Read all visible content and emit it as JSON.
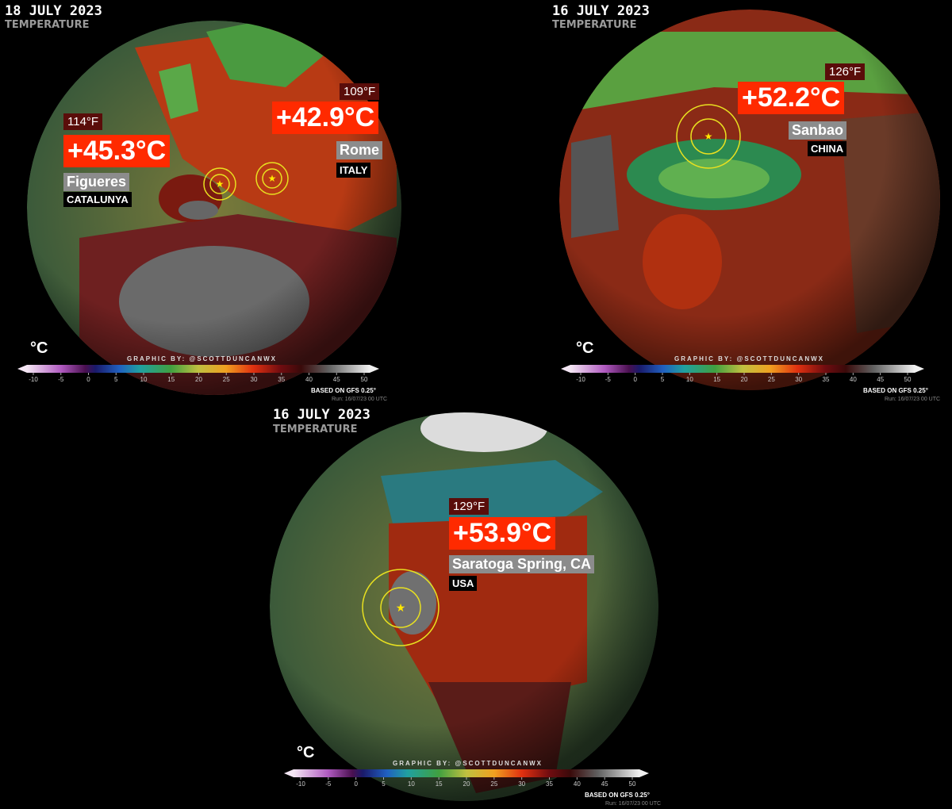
{
  "panels": [
    {
      "date": "18 JULY 2023",
      "subtitle": "TEMPERATURE",
      "callouts": [
        {
          "fahrenheit": "114°F",
          "celsius": "+45.3°C",
          "place": "Figueres",
          "region": "CATALUNYA"
        },
        {
          "fahrenheit": "109°F",
          "celsius": "+42.9°C",
          "place": "Rome",
          "region": "ITALY"
        }
      ],
      "credit": "GRAPHIC BY: @SCOTTDUNCANWX",
      "unit": "°C",
      "ticks": [
        -10,
        -5,
        0,
        5,
        10,
        15,
        20,
        25,
        30,
        35,
        40,
        45,
        50
      ],
      "source": "BASED ON GFS 0.25°",
      "run": "Run: 16/07/23 00 UTC"
    },
    {
      "date": "16 JULY 2023",
      "subtitle": "TEMPERATURE",
      "callouts": [
        {
          "fahrenheit": "126°F",
          "celsius": "+52.2°C",
          "place": "Sanbao",
          "region": "CHINA"
        }
      ],
      "credit": "GRAPHIC BY: @SCOTTDUNCANWX",
      "unit": "°C",
      "ticks": [
        -10,
        -5,
        0,
        5,
        10,
        15,
        20,
        25,
        30,
        35,
        40,
        45,
        50
      ],
      "source": "BASED ON GFS 0.25°",
      "run": "Run: 16/07/23 00 UTC"
    },
    {
      "date": "16 JULY 2023",
      "subtitle": "TEMPERATURE",
      "callouts": [
        {
          "fahrenheit": "129°F",
          "celsius": "+53.9°C",
          "place": "Saratoga Spring, CA",
          "region": "USA"
        }
      ],
      "credit": "GRAPHIC BY: @SCOTTDUNCANWX",
      "unit": "°C",
      "ticks": [
        -10,
        -5,
        0,
        5,
        10,
        15,
        20,
        25,
        30,
        35,
        40,
        45,
        50
      ],
      "source": "BASED ON GFS 0.25°",
      "run": "Run: 16/07/23 00 UTC"
    }
  ]
}
